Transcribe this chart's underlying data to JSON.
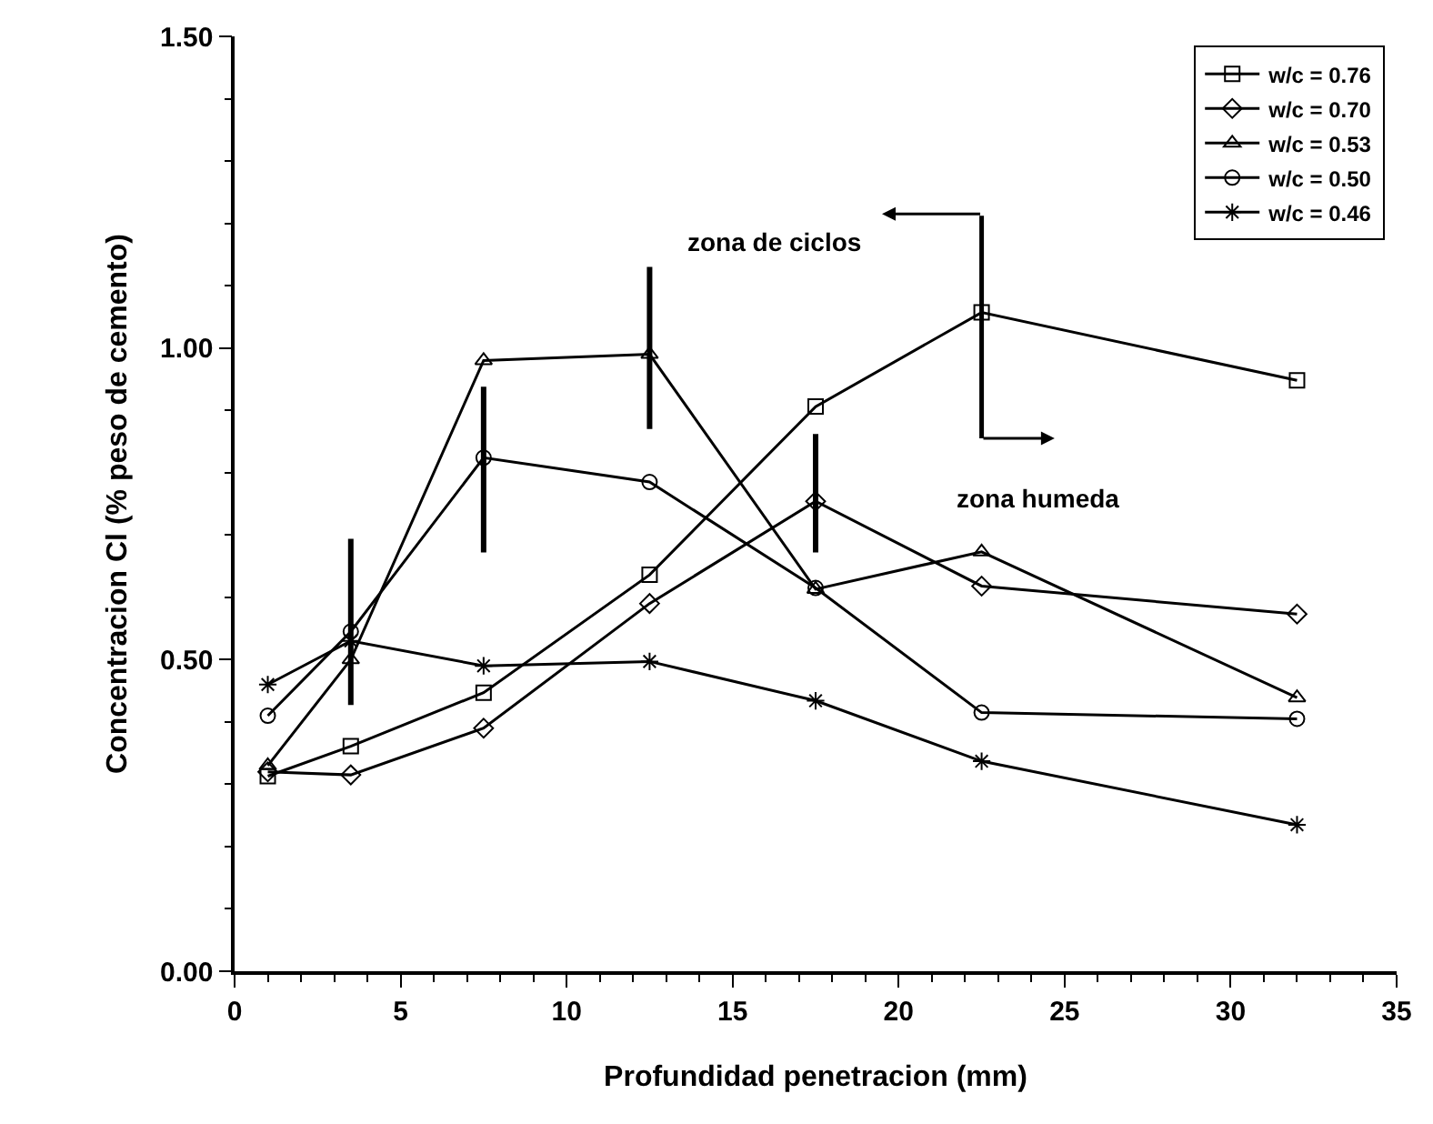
{
  "chart_data": {
    "type": "line",
    "xlabel": "Profundidad penetracion (mm)",
    "ylabel": "Concentracion Cl (% peso de cemento)",
    "x": [
      1,
      3.5,
      7.5,
      12.5,
      17.5,
      22.5,
      32
    ],
    "series": [
      {
        "name": "w/c = 0.76",
        "color": "#000000",
        "marker": "square",
        "values": [
          0.313,
          0.361,
          0.447,
          0.636,
          0.906,
          1.057,
          0.948
        ]
      },
      {
        "name": "w/c = 0.70",
        "color": "#000000",
        "marker": "diamond",
        "values": [
          0.32,
          0.315,
          0.39,
          0.59,
          0.754,
          0.618,
          0.573
        ],
        "errors": [
          null,
          null,
          null,
          null,
          [
            0.672,
            0.862
          ],
          null,
          null
        ]
      },
      {
        "name": "w/c = 0.53",
        "color": "#000000",
        "marker": "triangle",
        "values": [
          0.33,
          0.5,
          0.98,
          0.99,
          0.613,
          0.673,
          0.439
        ],
        "errors": [
          null,
          null,
          null,
          [
            0.87,
            1.13
          ],
          null,
          null,
          null
        ]
      },
      {
        "name": "w/c = 0.50",
        "color": "#000000",
        "marker": "circle",
        "values": [
          0.41,
          0.545,
          0.824,
          0.785,
          0.615,
          0.415,
          0.405
        ],
        "errors": [
          null,
          [
            0.427,
            0.694
          ],
          [
            0.672,
            0.938
          ],
          null,
          null,
          null,
          null
        ]
      },
      {
        "name": "w/c = 0.46",
        "color": "#000000",
        "marker": "cross",
        "values": [
          0.46,
          0.53,
          0.49,
          0.497,
          0.434,
          0.337,
          0.235
        ]
      }
    ],
    "xlim": [
      0,
      35
    ],
    "xticks": [
      0,
      5,
      10,
      15,
      20,
      25,
      30,
      35,
      {
        "value": 1,
        "label": null
      },
      {
        "value": 2,
        "label": null
      },
      {
        "value": 3,
        "label": null
      },
      {
        "value": 4,
        "label": null
      },
      {
        "value": 6,
        "label": null
      },
      {
        "value": 7,
        "label": null
      },
      {
        "value": 8,
        "label": null
      },
      {
        "value": 9,
        "label": null
      },
      {
        "value": 11,
        "label": null
      },
      {
        "value": 12,
        "label": null
      },
      {
        "value": 13,
        "label": null
      },
      {
        "value": 14,
        "label": null
      },
      {
        "value": 16,
        "label": null
      },
      {
        "value": 17,
        "label": null
      },
      {
        "value": 18,
        "label": null
      },
      {
        "value": 19,
        "label": null
      },
      {
        "value": 21,
        "label": null
      },
      {
        "value": 22,
        "label": null
      },
      {
        "value": 23,
        "label": null
      },
      {
        "value": 24,
        "label": null
      },
      {
        "value": 26,
        "label": null
      },
      {
        "value": 27,
        "label": null
      },
      {
        "value": 28,
        "label": null
      },
      {
        "value": 29,
        "label": null
      },
      {
        "value": 31,
        "label": null
      },
      {
        "value": 32,
        "label": null
      },
      {
        "value": 33,
        "label": null
      },
      {
        "value": 34,
        "label": null
      }
    ],
    "ylim": [
      0,
      1.5
    ],
    "yticks": [
      {
        "value": 0,
        "label": "0.00"
      },
      {
        "value": 0.5,
        "label": "0.50"
      },
      {
        "value": 1,
        "label": "1.00"
      },
      {
        "value": 1.5,
        "label": "1.50"
      },
      {
        "value": 0.1,
        "label": null
      },
      {
        "value": 0.2,
        "label": null
      },
      {
        "value": 0.3,
        "label": null
      },
      {
        "value": 0.4,
        "label": null
      },
      {
        "value": 0.6,
        "label": null
      },
      {
        "value": 0.7,
        "label": null
      },
      {
        "value": 0.8,
        "label": null
      },
      {
        "value": 0.9,
        "label": null
      },
      {
        "value": 1.1,
        "label": null
      },
      {
        "value": 1.2,
        "label": null
      },
      {
        "value": 1.3,
        "label": null
      },
      {
        "value": 1.4,
        "label": null
      }
    ],
    "annotations": [
      "zona de ciclos",
      "zona humeda"
    ],
    "ref_lines": [
      {
        "axis": "x",
        "value": 22.5
      }
    ],
    "legend": "top right",
    "line_style": "solid"
  }
}
